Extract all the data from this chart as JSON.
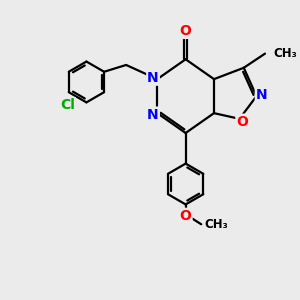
{
  "bg_color": "#ebebeb",
  "bond_color": "#000000",
  "bond_width": 1.6,
  "atom_colors": {
    "O": "#ff0000",
    "N": "#0000ff",
    "Cl": "#00aa00",
    "C": "#000000"
  },
  "font_size_atom": 10,
  "font_size_methyl": 8.5
}
